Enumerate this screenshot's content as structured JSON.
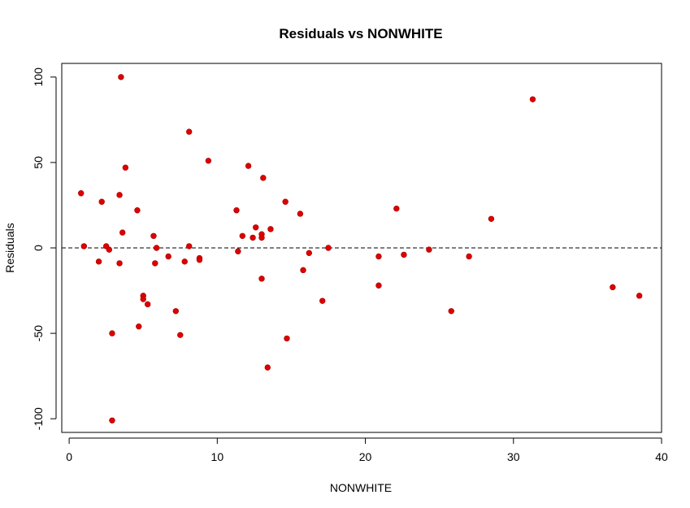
{
  "chart_data": {
    "type": "scatter",
    "title": "Residuals vs NONWHITE",
    "xlabel": "NONWHITE",
    "ylabel": "Residuals",
    "xlim": [
      -0.5,
      40.0
    ],
    "ylim": [
      -108,
      108
    ],
    "xticks": [
      0,
      10,
      20,
      30,
      40
    ],
    "yticks": [
      -100,
      -50,
      0,
      50,
      100
    ],
    "xtick_labels": [
      "0",
      "10",
      "20",
      "30",
      "40"
    ],
    "ytick_labels": [
      "-100",
      "-50",
      "0",
      "50",
      "100"
    ],
    "reference_line": {
      "y": 0,
      "style": "dashed"
    },
    "grid": false,
    "point_color": "#dd0000",
    "point_outline": "#b40000",
    "points": [
      {
        "x": 0.8,
        "y": 32
      },
      {
        "x": 1.0,
        "y": 1
      },
      {
        "x": 2.0,
        "y": -8
      },
      {
        "x": 2.2,
        "y": 27
      },
      {
        "x": 2.5,
        "y": 1
      },
      {
        "x": 2.7,
        "y": -1
      },
      {
        "x": 2.9,
        "y": -50
      },
      {
        "x": 2.9,
        "y": -101
      },
      {
        "x": 3.4,
        "y": 31
      },
      {
        "x": 3.4,
        "y": -9
      },
      {
        "x": 3.5,
        "y": 100
      },
      {
        "x": 3.6,
        "y": 9
      },
      {
        "x": 3.8,
        "y": 47
      },
      {
        "x": 4.6,
        "y": 22
      },
      {
        "x": 4.7,
        "y": -46
      },
      {
        "x": 5.0,
        "y": -28
      },
      {
        "x": 5.0,
        "y": -30
      },
      {
        "x": 5.3,
        "y": -33
      },
      {
        "x": 5.7,
        "y": 7
      },
      {
        "x": 5.8,
        "y": -9
      },
      {
        "x": 5.9,
        "y": 0
      },
      {
        "x": 6.7,
        "y": -5
      },
      {
        "x": 7.2,
        "y": -37
      },
      {
        "x": 7.5,
        "y": -51
      },
      {
        "x": 7.8,
        "y": -8
      },
      {
        "x": 8.1,
        "y": 68
      },
      {
        "x": 8.1,
        "y": 1
      },
      {
        "x": 8.8,
        "y": -6
      },
      {
        "x": 8.8,
        "y": -7
      },
      {
        "x": 9.4,
        "y": 51
      },
      {
        "x": 11.3,
        "y": 22
      },
      {
        "x": 11.4,
        "y": -2
      },
      {
        "x": 11.7,
        "y": 7
      },
      {
        "x": 12.1,
        "y": 48
      },
      {
        "x": 12.4,
        "y": 6
      },
      {
        "x": 12.6,
        "y": 12
      },
      {
        "x": 13.0,
        "y": 8
      },
      {
        "x": 13.0,
        "y": 6
      },
      {
        "x": 13.0,
        "y": -18
      },
      {
        "x": 13.1,
        "y": 41
      },
      {
        "x": 13.4,
        "y": -70
      },
      {
        "x": 13.6,
        "y": 11
      },
      {
        "x": 14.6,
        "y": 27
      },
      {
        "x": 14.7,
        "y": -53
      },
      {
        "x": 15.6,
        "y": 20
      },
      {
        "x": 15.8,
        "y": -13
      },
      {
        "x": 16.2,
        "y": -3
      },
      {
        "x": 17.1,
        "y": -31
      },
      {
        "x": 17.5,
        "y": 0
      },
      {
        "x": 20.9,
        "y": -5
      },
      {
        "x": 20.9,
        "y": -22
      },
      {
        "x": 22.1,
        "y": 23
      },
      {
        "x": 22.6,
        "y": -4
      },
      {
        "x": 24.3,
        "y": -1
      },
      {
        "x": 25.8,
        "y": -37
      },
      {
        "x": 27.0,
        "y": -5
      },
      {
        "x": 28.5,
        "y": 17
      },
      {
        "x": 31.3,
        "y": 87
      },
      {
        "x": 36.7,
        "y": -23
      },
      {
        "x": 38.5,
        "y": -28
      }
    ]
  }
}
